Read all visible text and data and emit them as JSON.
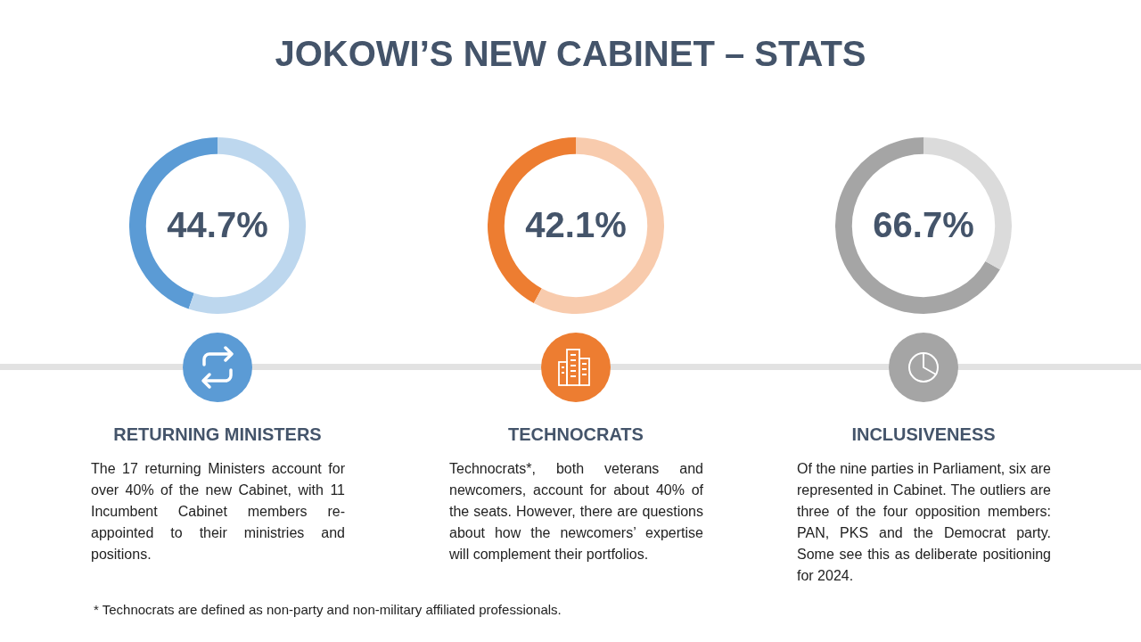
{
  "chart_data": [
    {
      "type": "donut",
      "title": "RETURNING MINISTERS",
      "categories": [
        null,
        null
      ],
      "values": [
        44.7,
        55.3
      ],
      "colors": [
        "#5b9bd5",
        "#bdd7ee"
      ],
      "value_labels": [
        "44.7%",
        null
      ],
      "annotations": [
        "The 17 returning Ministers account for over 40% of the new Cabinet, with 11 Incumbent Cabinet members re-appointed to their ministries and positions."
      ]
    },
    {
      "type": "donut",
      "title": "TECHNOCRATS",
      "categories": [
        null,
        null
      ],
      "values": [
        42.1,
        57.9
      ],
      "colors": [
        "#ed7d31",
        "#f8cbad"
      ],
      "value_labels": [
        "42.1%",
        null
      ],
      "annotations": [
        "Technocrats*, both veterans and newcomers, account for about 40% of the seats. However, there are questions about how the newcomers’ expertise will complement their portfolios."
      ]
    },
    {
      "type": "donut",
      "title": "INCLUSIVENESS",
      "categories": [
        null,
        null
      ],
      "values": [
        66.7,
        33.3
      ],
      "colors": [
        "#a5a5a5",
        "#dbdbdb"
      ],
      "value_labels": [
        "66.7%",
        null
      ],
      "annotations": [
        "Of the nine parties in Parliament, six are represented in Cabinet. The outliers are three of the four opposition members: PAN, PKS and the Democrat party. Some see this as deliberate positioning for 2024."
      ]
    },
    {
      "type": "other",
      "title": "JOKOWI’S NEW CABINET – STATS",
      "annotations": [
        "* Technocrats are defined as non-party and non-military affiliated professionals."
      ]
    }
  ]
}
